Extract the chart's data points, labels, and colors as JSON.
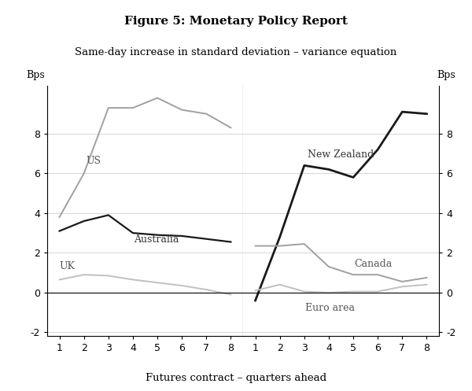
{
  "title": "Figure 5: Monetary Policy Report",
  "subtitle": "Same-day increase in standard deviation – variance equation",
  "xlabel": "Futures contract – quarters ahead",
  "x": [
    1,
    2,
    3,
    4,
    5,
    6,
    7,
    8
  ],
  "left_panel": {
    "US": [
      3.8,
      6.0,
      9.3,
      9.3,
      9.8,
      9.2,
      9.0,
      8.3
    ],
    "Australia": [
      3.1,
      3.6,
      3.9,
      3.0,
      2.9,
      2.85,
      2.7,
      2.55
    ],
    "UK": [
      0.65,
      0.9,
      0.85,
      0.65,
      0.5,
      0.35,
      0.15,
      -0.1
    ]
  },
  "right_panel": {
    "New Zealand": [
      -0.4,
      2.8,
      6.4,
      6.2,
      5.8,
      7.2,
      9.1,
      9.0
    ],
    "Canada": [
      2.35,
      2.35,
      2.45,
      1.3,
      0.9,
      0.9,
      0.55,
      0.75
    ],
    "Euro area": [
      0.1,
      0.4,
      0.05,
      0.0,
      0.05,
      0.05,
      0.3,
      0.4
    ]
  },
  "ylim": [
    -2.2,
    10.4
  ],
  "yticks": [
    -2,
    0,
    2,
    4,
    6,
    8
  ],
  "yticklabels": [
    "-2",
    "0",
    "2",
    "4",
    "6",
    "8"
  ],
  "colors": {
    "US": "#a0a0a0",
    "Australia": "#1a1a1a",
    "UK": "#c0c0c0",
    "New Zealand": "#1a1a1a",
    "Canada": "#a0a0a0",
    "Euro area": "#c0c0c0"
  },
  "line_widths": {
    "US": 1.4,
    "Australia": 1.6,
    "UK": 1.4,
    "New Zealand": 2.0,
    "Canada": 1.4,
    "Euro area": 1.4
  },
  "background_color": "#ffffff",
  "grid_color": "#d0d0d0",
  "left_labels": {
    "US": [
      2.1,
      6.5
    ],
    "Australia": [
      4.05,
      2.55
    ],
    "UK": [
      1.0,
      1.2
    ]
  },
  "right_labels": {
    "New Zealand": [
      3.15,
      6.8
    ],
    "Canada": [
      5.05,
      1.3
    ],
    "Euro area": [
      3.05,
      -0.9
    ]
  },
  "label_fontsize": 9,
  "title_fontsize": 11,
  "subtitle_fontsize": 9.5,
  "xlabel_fontsize": 9.5,
  "tick_fontsize": 9
}
